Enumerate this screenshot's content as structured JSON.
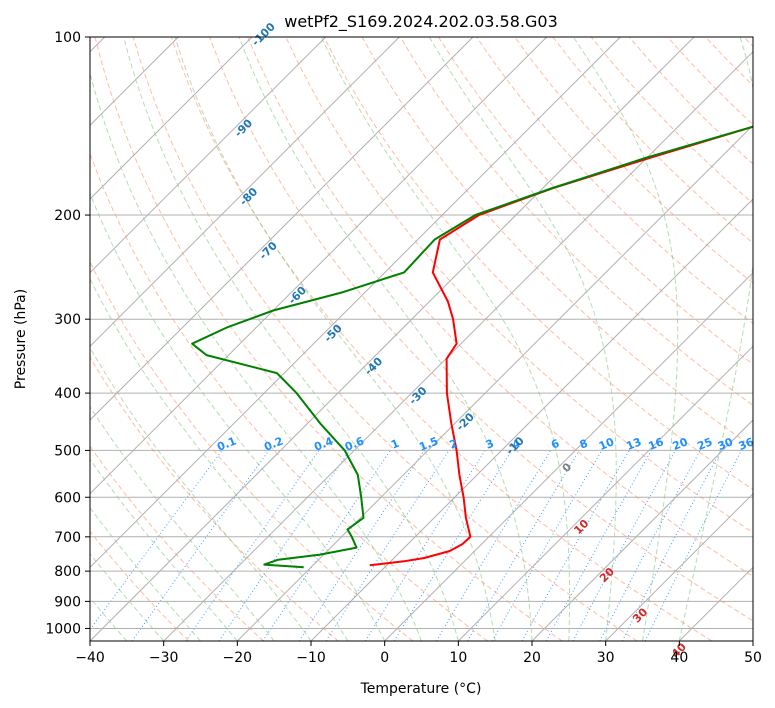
{
  "chart_data": {
    "type": "line",
    "chart_kind": "skew-T log-P diagram",
    "title": "wetPf2_S169.2024.202.03.58.G03",
    "xlabel": "Temperature (°C)",
    "ylabel": "Pressure (hPa)",
    "xlim": [
      -40,
      50
    ],
    "ylim": [
      1050,
      100
    ],
    "y_scale": "log",
    "x_ticks": [
      -40,
      -30,
      -20,
      -10,
      0,
      10,
      20,
      30,
      40,
      50
    ],
    "x_tick_labels": [
      "−40",
      "−30",
      "−20",
      "−10",
      "0",
      "10",
      "20",
      "30",
      "40",
      "50"
    ],
    "y_ticks": [
      100,
      200,
      300,
      400,
      500,
      600,
      700,
      800,
      900,
      1000
    ],
    "y_tick_labels": [
      "100",
      "200",
      "300",
      "400",
      "500",
      "600",
      "700",
      "800",
      "900",
      "1000"
    ],
    "grid": true,
    "isotherm_labels": [
      "-100",
      "-90",
      "-80",
      "-70",
      "-60",
      "-50",
      "-40",
      "-30",
      "-20",
      "-10",
      "0",
      "10",
      "20",
      "30",
      "40"
    ],
    "mixing_ratio_labels": [
      "0.1",
      "0.2",
      "0.4",
      "0.6",
      "1",
      "1.5",
      "2",
      "3",
      "4",
      "6",
      "8",
      "10",
      "13",
      "16",
      "20",
      "25",
      "30",
      "36"
    ],
    "series": [
      {
        "color": "#ff0000",
        "points": [
          [
            100,
            -5.4
          ],
          [
            120,
            -10.7
          ],
          [
            140,
            -18.8
          ],
          [
            160,
            -29.5
          ],
          [
            180,
            -38.6
          ],
          [
            200,
            -45.0
          ],
          [
            220,
            -47.0
          ],
          [
            250,
            -43.5
          ],
          [
            280,
            -37.5
          ],
          [
            300,
            -34.4
          ],
          [
            330,
            -30.6
          ],
          [
            350,
            -29.9
          ],
          [
            400,
            -25.2
          ],
          [
            450,
            -20.5
          ],
          [
            500,
            -16.1
          ],
          [
            550,
            -12.4
          ],
          [
            600,
            -8.8
          ],
          [
            650,
            -5.7
          ],
          [
            700,
            -2.5
          ],
          [
            720,
            -2.6
          ],
          [
            740,
            -3.4
          ],
          [
            760,
            -5.9
          ],
          [
            770,
            -8.2
          ],
          [
            782,
            -12.3
          ]
        ]
      },
      {
        "color": "#008000",
        "points": [
          [
            100,
            -5.4
          ],
          [
            120,
            -10.7
          ],
          [
            140,
            -18.7
          ],
          [
            160,
            -30.1
          ],
          [
            180,
            -38.7
          ],
          [
            200,
            -45.5
          ],
          [
            220,
            -47.7
          ],
          [
            250,
            -47.4
          ],
          [
            270,
            -53.0
          ],
          [
            290,
            -60.0
          ],
          [
            310,
            -64.0
          ],
          [
            330,
            -66.5
          ],
          [
            345,
            -63.0
          ],
          [
            370,
            -51.0
          ],
          [
            400,
            -45.6
          ],
          [
            450,
            -38.3
          ],
          [
            500,
            -31.3
          ],
          [
            550,
            -26.2
          ],
          [
            600,
            -22.7
          ],
          [
            650,
            -19.6
          ],
          [
            680,
            -20.2
          ],
          [
            700,
            -18.6
          ],
          [
            730,
            -16.5
          ],
          [
            750,
            -20.5
          ],
          [
            765,
            -25.5
          ],
          [
            780,
            -26.7
          ],
          [
            788,
            -21.0
          ]
        ]
      }
    ]
  }
}
